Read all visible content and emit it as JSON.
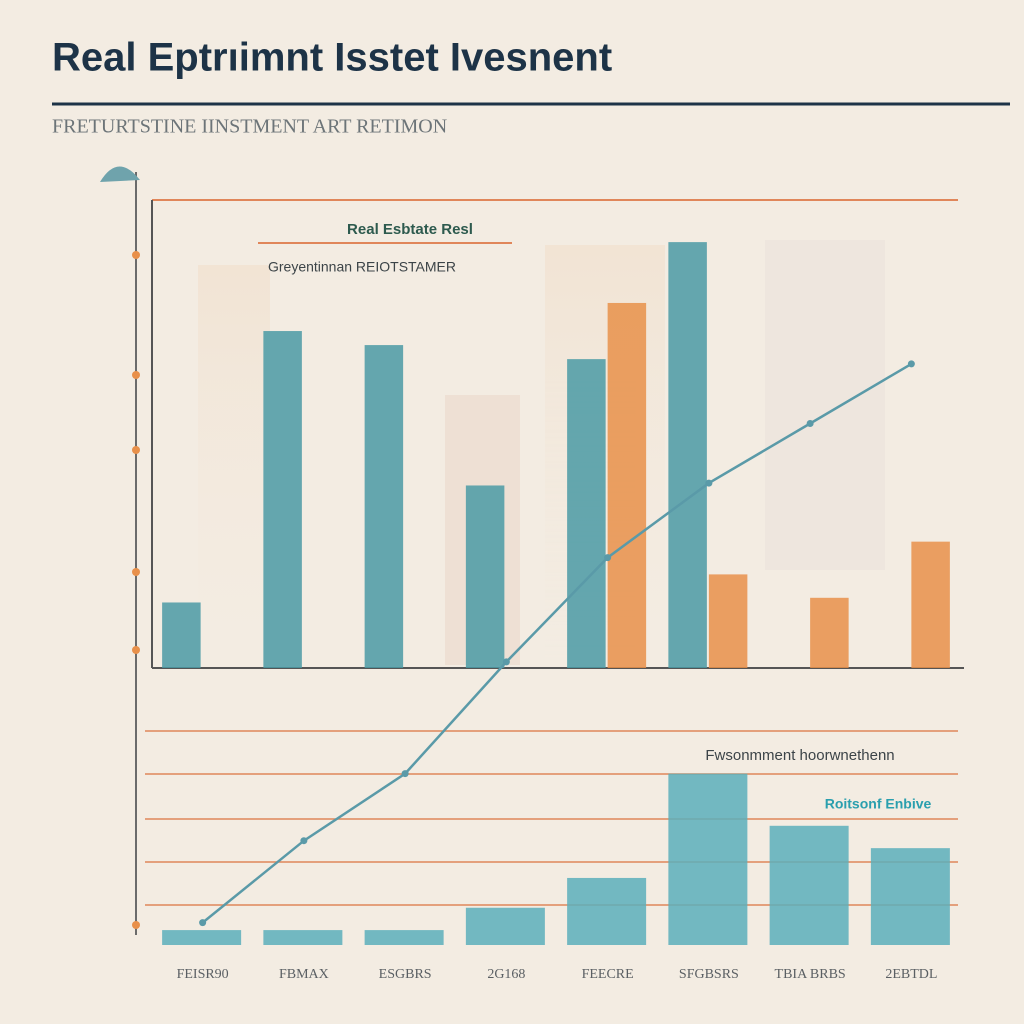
{
  "chart_data": [
    {
      "type": "bar",
      "title": "Real Eptrıimnt Isstet Ivesnent",
      "subtitle": "FRETURTSTINE IINSTMENT ART RETIMON",
      "annotations": [
        "Real Esbtate Resl",
        "Greyentinnan REIOTSTAMER"
      ],
      "categories": [
        "FEISR90",
        "FBMAX",
        "ESGBRS",
        "2G168",
        "FEECRE",
        "SFGBSRS",
        "TBIA BRBS",
        "2EBTDL"
      ],
      "ylim": [
        0,
        100
      ],
      "series": [
        {
          "color": "#4a9aa5",
          "values": [
            14,
            72,
            69,
            39,
            66,
            91,
            null,
            null
          ]
        },
        {
          "color": "#e8904a",
          "values": [
            null,
            null,
            null,
            null,
            78,
            20,
            15,
            27
          ]
        }
      ]
    },
    {
      "type": "bar",
      "annotations": [
        "Fwsonmment hoorwnethenn",
        "Roitsonf Enbive"
      ],
      "ylim": [
        0,
        100
      ],
      "series": [
        {
          "color": "#5aafbb",
          "values": [
            2,
            2,
            2,
            5,
            9,
            23,
            16,
            13
          ]
        },
        {
          "type": "line",
          "color": "#5a9aa8",
          "values": [
            3,
            14,
            23,
            38,
            52,
            62,
            70,
            78
          ]
        }
      ]
    }
  ]
}
